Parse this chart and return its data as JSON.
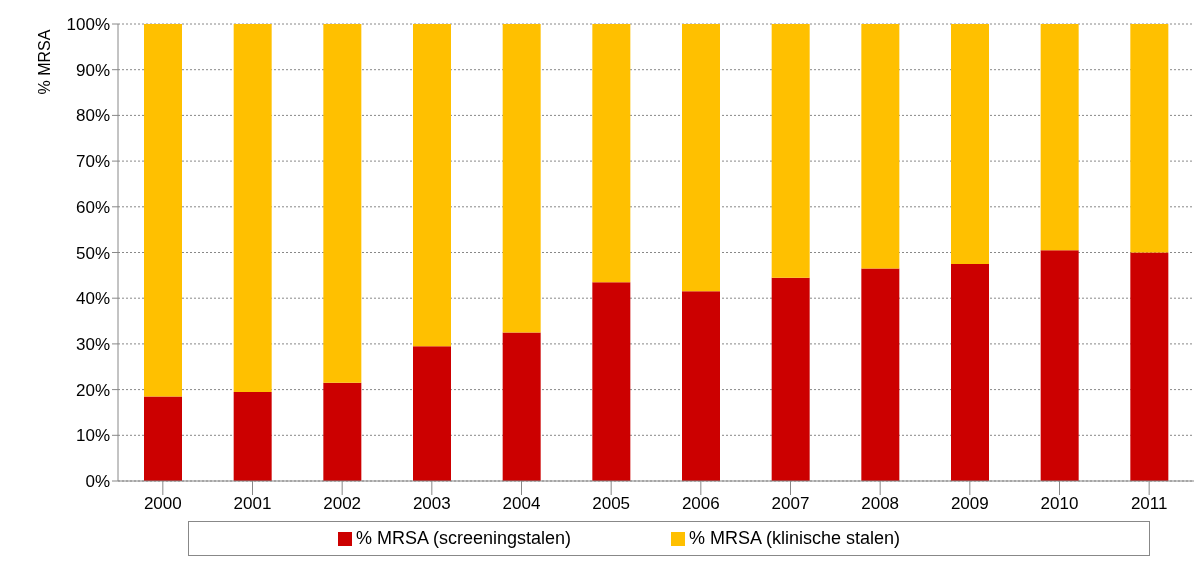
{
  "chart_data": {
    "type": "bar",
    "stacked": true,
    "ylabel": "% MRSA",
    "categories": [
      "2000",
      "2001",
      "2002",
      "2003",
      "2004",
      "2005",
      "2006",
      "2007",
      "2008",
      "2009",
      "2010",
      "2011"
    ],
    "series": [
      {
        "name": "% MRSA (screeningstalen)",
        "color": "#cc0000",
        "values": [
          18.5,
          19.5,
          21.5,
          29.5,
          32.5,
          43.5,
          41.5,
          44.5,
          46.5,
          47.5,
          50.5,
          50
        ]
      },
      {
        "name": "% MRSA (klinische stalen)",
        "color": "#ffc000",
        "values": [
          81.5,
          80.5,
          78.5,
          70.5,
          67.5,
          56.5,
          58.5,
          55.5,
          53.5,
          52.5,
          49.5,
          50
        ]
      }
    ],
    "ylim": [
      0,
      100
    ],
    "yticks": [
      {
        "value": 0,
        "label": "0%"
      },
      {
        "value": 10,
        "label": "10%"
      },
      {
        "value": 20,
        "label": "20%"
      },
      {
        "value": 30,
        "label": "30%"
      },
      {
        "value": 40,
        "label": "40%"
      },
      {
        "value": 50,
        "label": "50%"
      },
      {
        "value": 60,
        "label": "60%"
      },
      {
        "value": 70,
        "label": "70%"
      },
      {
        "value": 80,
        "label": "80%"
      },
      {
        "value": 90,
        "label": "90%"
      },
      {
        "value": 100,
        "label": "100%"
      }
    ],
    "grid": "y",
    "legend": "bottom"
  }
}
